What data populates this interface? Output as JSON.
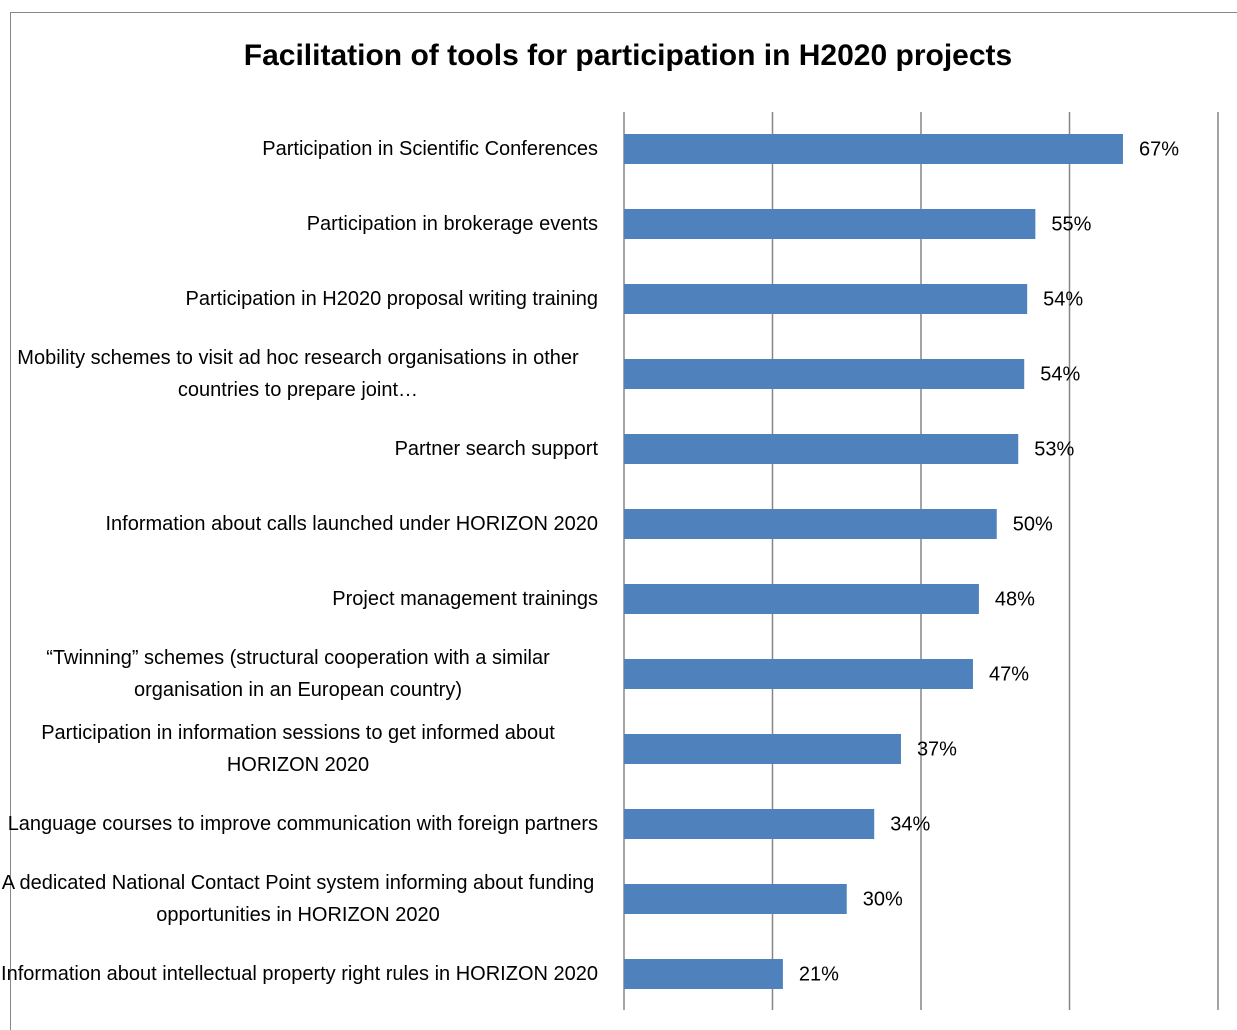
{
  "chart_data": {
    "type": "bar",
    "orientation": "horizontal",
    "title": "Facilitation of tools for participation in H2020 projects",
    "categories": [
      "Participation in Scientific Conferences",
      "Participation in brokerage events",
      "Participation in H2020 proposal writing training",
      "Mobility schemes to visit ad hoc research organisations in other countries to prepare joint…",
      "Partner search support",
      "Information about calls launched under HORIZON 2020",
      "Project management trainings",
      "“Twinning” schemes (structural cooperation with a similar organisation in an European country)",
      "Participation in information sessions to get informed about HORIZON 2020",
      "Language courses to improve communication with foreign partners",
      "A dedicated National Contact Point system informing about funding opportunities in HORIZON 2020",
      "Information about intellectual property right rules in HORIZON 2020"
    ],
    "values": [
      67.2,
      55.4,
      54.3,
      53.9,
      53.1,
      50.2,
      47.8,
      47.0,
      37.3,
      33.7,
      30.0,
      21.4
    ],
    "value_labels": [
      "67%",
      "55%",
      "54%",
      "54%",
      "53%",
      "50%",
      "48%",
      "47%",
      "37%",
      "34%",
      "30%",
      "21%"
    ],
    "color": "#4f81bd",
    "xlim": [
      0,
      80
    ],
    "xticks": [
      0,
      20,
      40,
      60,
      80
    ],
    "grid": true
  }
}
